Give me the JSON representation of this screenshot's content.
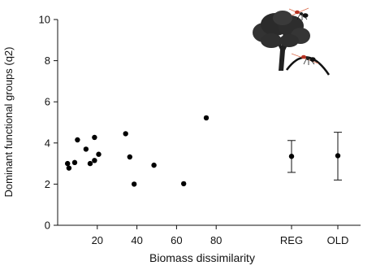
{
  "chart_data": {
    "type": "scatter",
    "title": "",
    "xlabel": "Biomass dissimilarity",
    "ylabel": "Dominant functional groups (q2)",
    "xlim": [
      0,
      100
    ],
    "ylim": [
      0,
      10
    ],
    "x_ticks": [
      20,
      40,
      60,
      80
    ],
    "x_tick_labels": [
      "20",
      "40",
      "60",
      "80"
    ],
    "y_ticks": [
      0,
      2,
      4,
      6,
      8,
      10
    ],
    "y_tick_labels": [
      "0",
      "2",
      "4",
      "6",
      "8",
      "10"
    ],
    "grid": false,
    "legend": "none",
    "series": [
      {
        "points": [
          {
            "x": 5.0,
            "y": 3.0
          },
          {
            "x": 5.7,
            "y": 2.78
          },
          {
            "x": 8.6,
            "y": 3.05
          },
          {
            "x": 10.0,
            "y": 4.15
          },
          {
            "x": 14.3,
            "y": 3.7
          },
          {
            "x": 16.4,
            "y": 3.0
          },
          {
            "x": 18.6,
            "y": 4.27
          },
          {
            "x": 18.6,
            "y": 3.15
          },
          {
            "x": 20.7,
            "y": 3.45
          },
          {
            "x": 34.3,
            "y": 4.45
          },
          {
            "x": 36.4,
            "y": 3.32
          },
          {
            "x": 38.6,
            "y": 2.0
          },
          {
            "x": 48.6,
            "y": 2.92
          },
          {
            "x": 63.6,
            "y": 2.02
          },
          {
            "x": 75.0,
            "y": 5.22
          }
        ]
      }
    ],
    "categorical_groups": [
      {
        "label": "REG",
        "mean": 3.35,
        "lower": 2.57,
        "upper": 4.12
      },
      {
        "label": "OLD",
        "mean": 3.38,
        "lower": 2.2,
        "upper": 4.52
      }
    ],
    "colors": {
      "marker": "#000000",
      "axis": "#111111"
    },
    "decoration": "tree and ant silhouettes"
  }
}
